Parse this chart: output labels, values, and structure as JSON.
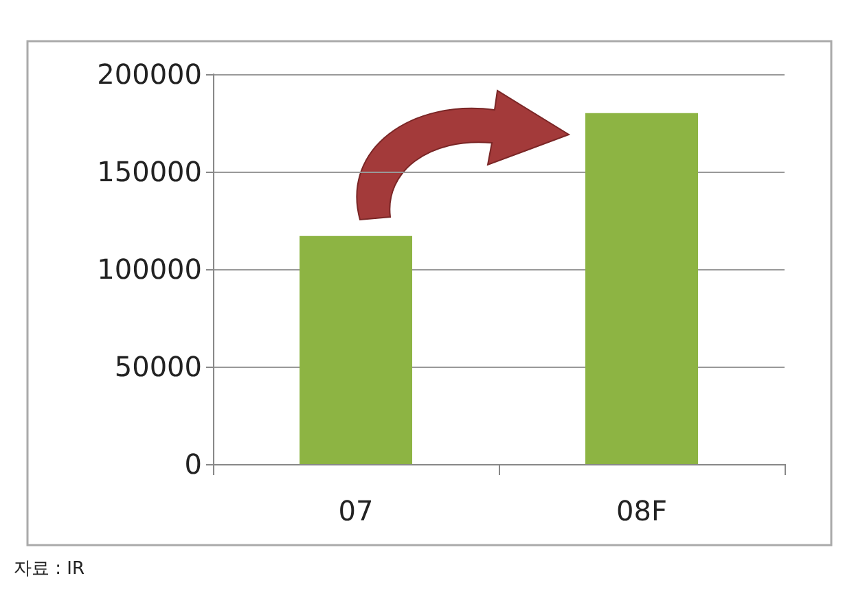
{
  "chart_data": {
    "type": "bar",
    "categories": [
      "07",
      "08F"
    ],
    "values": [
      117000,
      180000
    ],
    "color": "#8db443",
    "ylim": [
      0,
      200000
    ],
    "yticks": [
      0,
      50000,
      100000,
      150000,
      200000
    ],
    "grid": "y",
    "annotations": [
      "자료 : IR"
    ]
  }
}
